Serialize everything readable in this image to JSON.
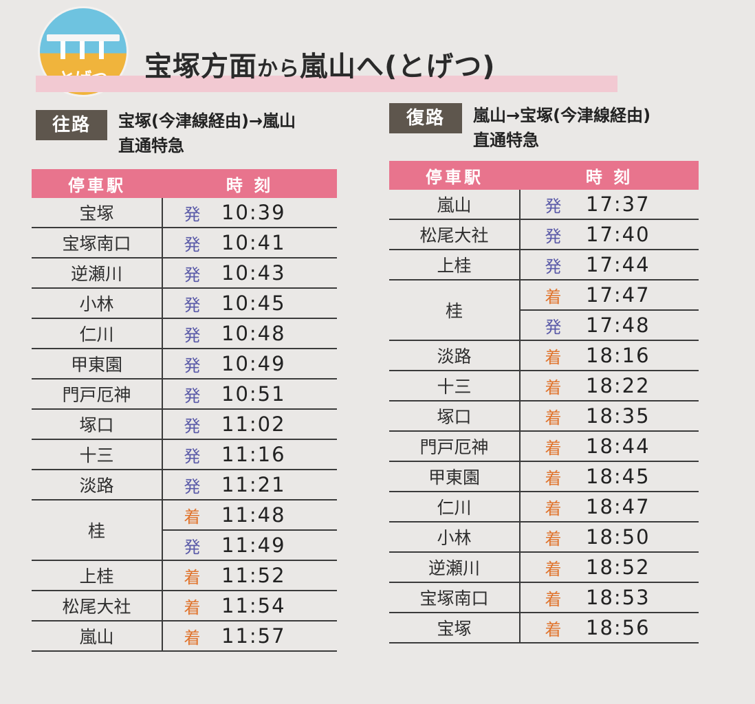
{
  "logo_text": "とげつ",
  "title": {
    "part1": "宝塚方面",
    "part2": "から",
    "part3": "嵐山へ(とげつ)"
  },
  "outbound": {
    "tag": "往路",
    "route": "宝塚(今津線経由)→嵐山",
    "train": "直通特急",
    "headers": {
      "station": "停車駅",
      "time": "時 刻"
    },
    "rows": [
      {
        "station": "宝塚",
        "stops": [
          {
            "mark": "発",
            "type": "dep",
            "time": "10:39"
          }
        ]
      },
      {
        "station": "宝塚南口",
        "stops": [
          {
            "mark": "発",
            "type": "dep",
            "time": "10:41"
          }
        ]
      },
      {
        "station": "逆瀬川",
        "stops": [
          {
            "mark": "発",
            "type": "dep",
            "time": "10:43"
          }
        ]
      },
      {
        "station": "小林",
        "stops": [
          {
            "mark": "発",
            "type": "dep",
            "time": "10:45"
          }
        ]
      },
      {
        "station": "仁川",
        "stops": [
          {
            "mark": "発",
            "type": "dep",
            "time": "10:48"
          }
        ]
      },
      {
        "station": "甲東園",
        "stops": [
          {
            "mark": "発",
            "type": "dep",
            "time": "10:49"
          }
        ]
      },
      {
        "station": "門戸厄神",
        "stops": [
          {
            "mark": "発",
            "type": "dep",
            "time": "10:51"
          }
        ]
      },
      {
        "station": "塚口",
        "stops": [
          {
            "mark": "発",
            "type": "dep",
            "time": "11:02"
          }
        ]
      },
      {
        "station": "十三",
        "stops": [
          {
            "mark": "発",
            "type": "dep",
            "time": "11:16"
          }
        ]
      },
      {
        "station": "淡路",
        "stops": [
          {
            "mark": "発",
            "type": "dep",
            "time": "11:21"
          }
        ]
      },
      {
        "station": "桂",
        "stops": [
          {
            "mark": "着",
            "type": "arr",
            "time": "11:48"
          },
          {
            "mark": "発",
            "type": "dep",
            "time": "11:49"
          }
        ]
      },
      {
        "station": "上桂",
        "stops": [
          {
            "mark": "着",
            "type": "arr",
            "time": "11:52"
          }
        ]
      },
      {
        "station": "松尾大社",
        "stops": [
          {
            "mark": "着",
            "type": "arr",
            "time": "11:54"
          }
        ]
      },
      {
        "station": "嵐山",
        "stops": [
          {
            "mark": "着",
            "type": "arr",
            "time": "11:57"
          }
        ]
      }
    ]
  },
  "inbound": {
    "tag": "復路",
    "route": "嵐山→宝塚(今津線経由)",
    "train": "直通特急",
    "headers": {
      "station": "停車駅",
      "time": "時 刻"
    },
    "rows": [
      {
        "station": "嵐山",
        "stops": [
          {
            "mark": "発",
            "type": "dep",
            "time": "17:37"
          }
        ]
      },
      {
        "station": "松尾大社",
        "stops": [
          {
            "mark": "発",
            "type": "dep",
            "time": "17:40"
          }
        ]
      },
      {
        "station": "上桂",
        "stops": [
          {
            "mark": "発",
            "type": "dep",
            "time": "17:44"
          }
        ]
      },
      {
        "station": "桂",
        "stops": [
          {
            "mark": "着",
            "type": "arr",
            "time": "17:47"
          },
          {
            "mark": "発",
            "type": "dep",
            "time": "17:48"
          }
        ]
      },
      {
        "station": "淡路",
        "stops": [
          {
            "mark": "着",
            "type": "arr",
            "time": "18:16"
          }
        ]
      },
      {
        "station": "十三",
        "stops": [
          {
            "mark": "着",
            "type": "arr",
            "time": "18:22"
          }
        ]
      },
      {
        "station": "塚口",
        "stops": [
          {
            "mark": "着",
            "type": "arr",
            "time": "18:35"
          }
        ]
      },
      {
        "station": "門戸厄神",
        "stops": [
          {
            "mark": "着",
            "type": "arr",
            "time": "18:44"
          }
        ]
      },
      {
        "station": "甲東園",
        "stops": [
          {
            "mark": "着",
            "type": "arr",
            "time": "18:45"
          }
        ]
      },
      {
        "station": "仁川",
        "stops": [
          {
            "mark": "着",
            "type": "arr",
            "time": "18:47"
          }
        ]
      },
      {
        "station": "小林",
        "stops": [
          {
            "mark": "着",
            "type": "arr",
            "time": "18:50"
          }
        ]
      },
      {
        "station": "逆瀬川",
        "stops": [
          {
            "mark": "着",
            "type": "arr",
            "time": "18:52"
          }
        ]
      },
      {
        "station": "宝塚南口",
        "stops": [
          {
            "mark": "着",
            "type": "arr",
            "time": "18:53"
          }
        ]
      },
      {
        "station": "宝塚",
        "stops": [
          {
            "mark": "着",
            "type": "arr",
            "time": "18:56"
          }
        ]
      }
    ]
  }
}
